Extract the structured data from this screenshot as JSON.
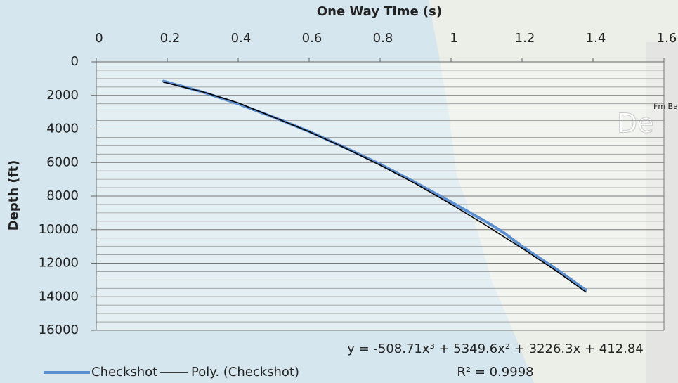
{
  "chart_data": {
    "type": "line",
    "title": "One Way Time (s)",
    "y_label": "Depth (ft)",
    "xlim": [
      0,
      1.6
    ],
    "xticks": [
      0,
      0.2,
      0.4,
      0.6,
      0.8,
      1,
      1.2,
      1.4,
      1.6
    ],
    "ylim": [
      0,
      16000
    ],
    "yticks": [
      0,
      2000,
      4000,
      6000,
      8000,
      10000,
      12000,
      14000,
      16000
    ],
    "y_inverted": true,
    "minor_yticks": [
      500,
      1000,
      1500,
      2500,
      3000,
      3500,
      4500,
      5000,
      5500,
      6500,
      7000,
      7500,
      8500,
      9000,
      9500,
      10500,
      11000,
      11500,
      12500,
      13000,
      13500,
      14500,
      15000,
      15500
    ],
    "grid": true,
    "series": [
      {
        "name": "Checkshot",
        "color": "#5b8fd0",
        "width": 4,
        "x": [
          0.19,
          0.3,
          0.4,
          0.5,
          0.6,
          0.7,
          0.8,
          0.9,
          1.0,
          1.1,
          1.15,
          1.2,
          1.3,
          1.38
        ],
        "values": [
          1150,
          1800,
          2500,
          3300,
          4150,
          5100,
          6100,
          7200,
          8350,
          9550,
          10200,
          11000,
          12400,
          13600
        ]
      },
      {
        "name": "Poly. (Checkshot)",
        "color": "#000000",
        "width": 1.6,
        "x": [
          0.19,
          0.3,
          0.4,
          0.5,
          0.6,
          0.7,
          0.8,
          0.9,
          1.0,
          1.1,
          1.2,
          1.3,
          1.38
        ],
        "values": [
          1215,
          1788,
          2446,
          3300,
          4165,
          5125,
          6158,
          7264,
          8480,
          9769,
          11109,
          12512,
          13716
        ]
      }
    ],
    "annotations": [
      "y = -508.71x³ + 5349.6x² + 3226.3x + 412.84",
      "R² = 0.9998"
    ]
  },
  "map_labels": [
    "Fm Ba",
    "De"
  ]
}
